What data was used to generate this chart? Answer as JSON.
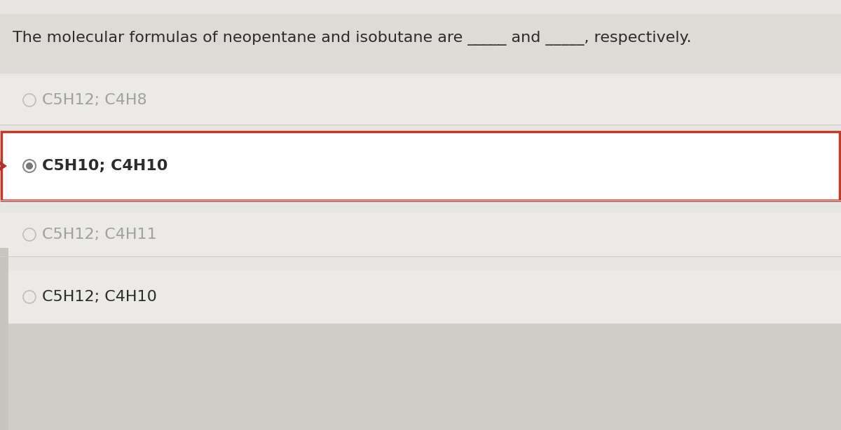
{
  "background_color": "#e8e6e3",
  "question_text": "The molecular formulas of neopentane and isobutane are _____ and _____, respectively.",
  "options": [
    {
      "label": "C5H12; C4H8",
      "selected": false,
      "greyed": true
    },
    {
      "label": "C5H10; C4H10",
      "selected": true,
      "greyed": false
    },
    {
      "label": "C5H12; C4H11",
      "selected": false,
      "greyed": true
    },
    {
      "label": "C5H12; C4H10",
      "selected": false,
      "greyed": false
    }
  ],
  "selected_border_color": "#c0392b",
  "selected_bg_color": "#ffffff",
  "row_bg_color": "#eceae7",
  "text_color_normal": "#2c2c2c",
  "text_color_grey": "#a0a0a0",
  "question_fontsize": 16,
  "option_fontsize": 16,
  "radio_outer_color_selected": "#888888",
  "radio_inner_color_selected": "#777777",
  "radio_outer_color_normal": "#bbbbbb",
  "arrow_color": "#b03030",
  "divider_color": "#d0ccc8",
  "left_panel_bg": "#d8d4cf",
  "bottom_panel_bg": "#d0ccc8"
}
